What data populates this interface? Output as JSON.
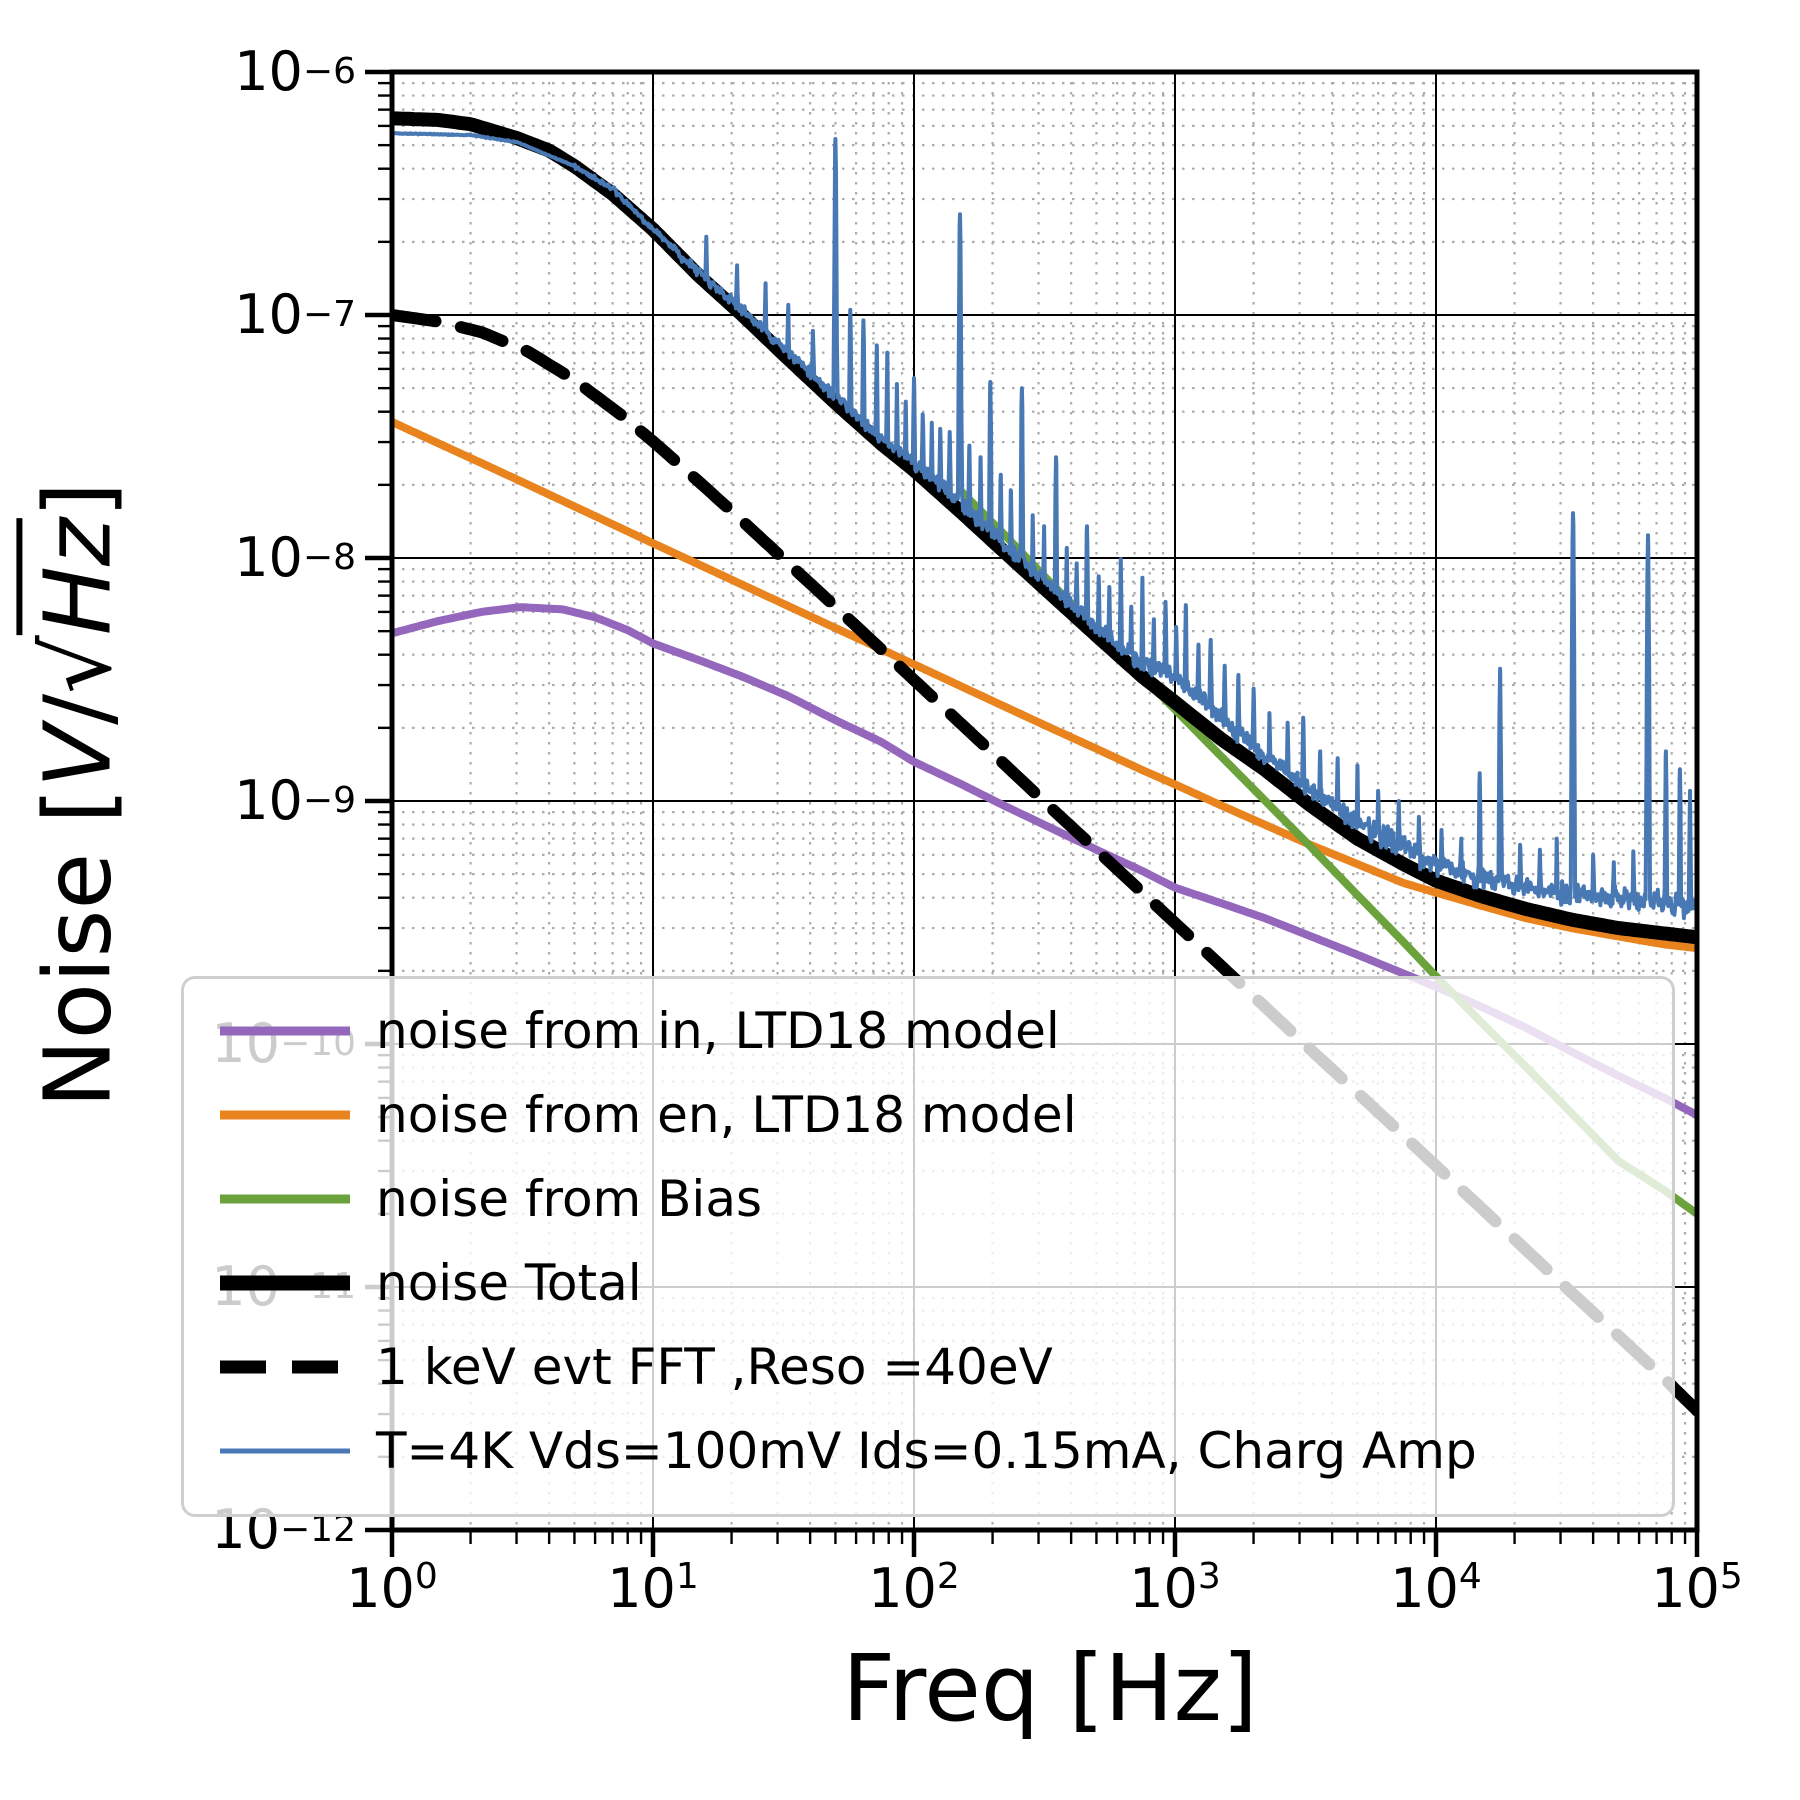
{
  "chart_data": {
    "type": "line",
    "title": "",
    "xlabel": "Freq [Hz]",
    "ylabel": "Noise [V/√Hz]",
    "ylabel_parts": {
      "prefix": "Noise [",
      "v": "V",
      "slash": "/",
      "radical": "√",
      "hz": "Hz",
      "suffix": "]"
    },
    "xscale": "log",
    "yscale": "log",
    "xlim": [
      1,
      100000
    ],
    "ylim": [
      1e-12,
      1e-06
    ],
    "x_tick_exponents": [
      0,
      1,
      2,
      3,
      4,
      5
    ],
    "y_tick_exponents": [
      -6,
      -7,
      -8,
      -9,
      -10,
      -11,
      -12
    ],
    "grid": {
      "major": true,
      "minor": true,
      "major_color": "#000000",
      "minor_color": "#ababab"
    },
    "legend": {
      "position": "lower-left",
      "background": "rgba(255,255,255,0.8)",
      "border_color": "#cfcfcf"
    },
    "series": [
      {
        "name": "noise from in, LTD18 model",
        "color": "#9467bd",
        "width": 8,
        "dash": "none",
        "anchors": [
          [
            1,
            4.9e-09
          ],
          [
            1.5,
            5.5e-09
          ],
          [
            2.2,
            6e-09
          ],
          [
            3.1,
            6.28e-09
          ],
          [
            4.5,
            6.15e-09
          ],
          [
            6,
            5.7e-09
          ],
          [
            8,
            5.05e-09
          ],
          [
            10,
            4.45e-09
          ],
          [
            15,
            3.8e-09
          ],
          [
            22,
            3.25e-09
          ],
          [
            33,
            2.7e-09
          ],
          [
            50,
            2.15e-09
          ],
          [
            75,
            1.75e-09
          ],
          [
            100,
            1.45e-09
          ],
          [
            150,
            1.18e-09
          ],
          [
            220,
            9.6e-10
          ],
          [
            330,
            7.8e-10
          ],
          [
            500,
            6.3e-10
          ],
          [
            750,
            5.15e-10
          ],
          [
            1000,
            4.4e-10
          ],
          [
            1500,
            3.8e-10
          ],
          [
            2200,
            3.3e-10
          ],
          [
            3300,
            2.78e-10
          ],
          [
            5000,
            2.33e-10
          ],
          [
            7500,
            1.95e-10
          ],
          [
            10000,
            1.72e-10
          ],
          [
            15000,
            1.42e-10
          ],
          [
            22000,
            1.17e-10
          ],
          [
            33000,
            9.3e-11
          ],
          [
            50000,
            7.4e-11
          ],
          [
            75000,
            6e-11
          ],
          [
            100000,
            5.1e-11
          ]
        ]
      },
      {
        "name": "noise from en, LTD18 model",
        "color": "#e8831e",
        "width": 8,
        "dash": "none",
        "anchors": [
          [
            1,
            3.63e-08
          ],
          [
            1.5,
            2.97e-08
          ],
          [
            2.2,
            2.46e-08
          ],
          [
            3.3,
            2.01e-08
          ],
          [
            5,
            1.63e-08
          ],
          [
            7.5,
            1.33e-08
          ],
          [
            10,
            1.15e-08
          ],
          [
            15,
            9.4e-09
          ],
          [
            22,
            7.76e-09
          ],
          [
            33,
            6.34e-09
          ],
          [
            50,
            5.15e-09
          ],
          [
            75,
            4.21e-09
          ],
          [
            100,
            3.65e-09
          ],
          [
            150,
            2.98e-09
          ],
          [
            220,
            2.46e-09
          ],
          [
            330,
            2.01e-09
          ],
          [
            500,
            1.64e-09
          ],
          [
            750,
            1.34e-09
          ],
          [
            1000,
            1.17e-09
          ],
          [
            1500,
            9.6e-10
          ],
          [
            2200,
            8e-10
          ],
          [
            3300,
            6.6e-10
          ],
          [
            5000,
            5.5e-10
          ],
          [
            7500,
            4.6e-10
          ],
          [
            10000,
            4.2e-10
          ],
          [
            15000,
            3.7e-10
          ],
          [
            22000,
            3.3e-10
          ],
          [
            33000,
            3e-10
          ],
          [
            50000,
            2.77e-10
          ],
          [
            75000,
            2.57e-10
          ],
          [
            100000,
            2.48e-10
          ]
        ]
      },
      {
        "name": "noise from Bias",
        "color": "#6ba23c",
        "width": 8,
        "dash": "none",
        "anchors": [
          [
            150,
            1.9e-08
          ],
          [
            220,
            1.26e-08
          ],
          [
            330,
            8e-09
          ],
          [
            500,
            5.1e-09
          ],
          [
            750,
            3.25e-09
          ],
          [
            1000,
            2.38e-09
          ],
          [
            1500,
            1.53e-09
          ],
          [
            2200,
            1.01e-09
          ],
          [
            3300,
            6.5e-10
          ],
          [
            5000,
            4.1e-10
          ],
          [
            7500,
            2.63e-10
          ],
          [
            10000,
            1.9e-10
          ],
          [
            15000,
            1.22e-10
          ],
          [
            22000,
            8.1e-11
          ],
          [
            33000,
            5.2e-11
          ],
          [
            50000,
            3.3e-11
          ],
          [
            75000,
            2.5e-11
          ],
          [
            100000,
            2e-11
          ]
        ]
      },
      {
        "name": "noise Total",
        "color": "#000000",
        "width": 14,
        "dash": "none",
        "anchors": [
          [
            1,
            6.45e-07
          ],
          [
            1.5,
            6.35e-07
          ],
          [
            2,
            6.1e-07
          ],
          [
            3,
            5.35e-07
          ],
          [
            4,
            4.75e-07
          ],
          [
            5,
            4.1e-07
          ],
          [
            7,
            3.15e-07
          ],
          [
            10,
            2.25e-07
          ],
          [
            15,
            1.45e-07
          ],
          [
            22,
            1e-07
          ],
          [
            33,
            6.6e-08
          ],
          [
            50,
            4.35e-08
          ],
          [
            75,
            2.95e-08
          ],
          [
            100,
            2.3e-08
          ],
          [
            150,
            1.56e-08
          ],
          [
            220,
            1.07e-08
          ],
          [
            330,
            7.2e-09
          ],
          [
            500,
            4.8e-09
          ],
          [
            750,
            3.25e-09
          ],
          [
            1000,
            2.55e-09
          ],
          [
            1500,
            1.8e-09
          ],
          [
            2200,
            1.35e-09
          ],
          [
            3300,
            9.6e-10
          ],
          [
            5000,
            7e-10
          ],
          [
            7500,
            5.5e-10
          ],
          [
            10000,
            4.7e-10
          ],
          [
            15000,
            4.05e-10
          ],
          [
            22000,
            3.6e-10
          ],
          [
            33000,
            3.25e-10
          ],
          [
            50000,
            3e-10
          ],
          [
            75000,
            2.85e-10
          ],
          [
            100000,
            2.75e-10
          ]
        ]
      },
      {
        "name": "1 keV evt FFT ,Reso =40eV",
        "color": "#000000",
        "width": 12,
        "dash": "44 26",
        "legend_dash": "46 26",
        "anchors": [
          [
            1,
            1e-07
          ],
          [
            1.5,
            9.4e-08
          ],
          [
            2.2,
            8.5e-08
          ],
          [
            3.3,
            7.1e-08
          ],
          [
            5,
            5.4e-08
          ],
          [
            7.5,
            3.9e-08
          ],
          [
            10,
            3.02e-08
          ],
          [
            15,
            2.06e-08
          ],
          [
            22,
            1.42e-08
          ],
          [
            33,
            9.5e-09
          ],
          [
            50,
            6.3e-09
          ],
          [
            75,
            4.2e-09
          ],
          [
            100,
            3.15e-09
          ],
          [
            150,
            2.1e-09
          ],
          [
            220,
            1.43e-09
          ],
          [
            330,
            9.5e-10
          ],
          [
            500,
            6.3e-10
          ],
          [
            750,
            4.2e-10
          ],
          [
            1000,
            3.15e-10
          ],
          [
            1500,
            2.1e-10
          ],
          [
            2200,
            1.43e-10
          ],
          [
            3300,
            9.5e-11
          ],
          [
            5000,
            6.3e-11
          ],
          [
            7500,
            4.2e-11
          ],
          [
            10000,
            3.15e-11
          ],
          [
            15000,
            2.1e-11
          ],
          [
            22000,
            1.43e-11
          ],
          [
            33000,
            9.5e-12
          ],
          [
            50000,
            6.3e-12
          ],
          [
            75000,
            4.2e-12
          ],
          [
            100000,
            3.1e-12
          ]
        ]
      },
      {
        "name": "T=4K Vds=100mV Ids=0.15mA, Charg Amp",
        "color": "#4879b4",
        "width": 4,
        "dash": "none",
        "n": 1500,
        "seed": 42,
        "jitter": [
          [
            5,
            0.006
          ],
          [
            12,
            0.03
          ],
          [
            100,
            0.06
          ],
          [
            700,
            0.085
          ],
          [
            5000,
            0.105
          ],
          [
            1000000,
            0.13
          ]
        ],
        "anchors": [
          [
            1,
            5.6e-07
          ],
          [
            2,
            5.5e-07
          ],
          [
            3,
            5.15e-07
          ],
          [
            5,
            4.1e-07
          ],
          [
            7,
            3.3e-07
          ],
          [
            10,
            2.25e-07
          ],
          [
            15,
            1.5e-07
          ],
          [
            22,
            1.05e-07
          ],
          [
            33,
            7e-08
          ],
          [
            50,
            4.6e-08
          ],
          [
            75,
            3.1e-08
          ],
          [
            100,
            2.5e-08
          ],
          [
            150,
            1.7e-08
          ],
          [
            220,
            1.15e-08
          ],
          [
            330,
            7.8e-09
          ],
          [
            500,
            5.2e-09
          ],
          [
            750,
            3.7e-09
          ],
          [
            1000,
            3.3e-09
          ],
          [
            1500,
            2.2e-09
          ],
          [
            2200,
            1.55e-09
          ],
          [
            3300,
            1.12e-09
          ],
          [
            5000,
            8.2e-10
          ],
          [
            7500,
            6.5e-10
          ],
          [
            10000,
            5.5e-10
          ],
          [
            15000,
            4.8e-10
          ],
          [
            22000,
            4.4e-10
          ],
          [
            33000,
            4.15e-10
          ],
          [
            50000,
            4e-10
          ],
          [
            75000,
            3.85e-10
          ],
          [
            100000,
            3.6e-10
          ]
        ],
        "spikes": [
          [
            16,
            2.1e-07
          ],
          [
            21,
            1.6e-07
          ],
          [
            27,
            1.35e-07
          ],
          [
            33,
            1.1e-07
          ],
          [
            41,
            8.6e-08
          ],
          [
            50,
            5.3e-07
          ],
          [
            57,
            1.05e-07
          ],
          [
            64,
            9.5e-08
          ],
          [
            72,
            7.5e-08
          ],
          [
            79,
            7e-08
          ],
          [
            86,
            5.2e-08
          ],
          [
            93,
            4.4e-08
          ],
          [
            100,
            5.5e-08
          ],
          [
            108,
            3.9e-08
          ],
          [
            117,
            3.6e-08
          ],
          [
            126,
            3.4e-08
          ],
          [
            137,
            3.3e-08
          ],
          [
            150,
            2.6e-07
          ],
          [
            163,
            2.9e-08
          ],
          [
            180,
            2.6e-08
          ],
          [
            196,
            5.3e-08
          ],
          [
            215,
            2.2e-08
          ],
          [
            235,
            1.9e-08
          ],
          [
            259,
            5e-08
          ],
          [
            285,
            1.5e-08
          ],
          [
            315,
            1.35e-08
          ],
          [
            350,
            2.6e-08
          ],
          [
            385,
            1.1e-08
          ],
          [
            420,
            9.5e-09
          ],
          [
            460,
            1.35e-08
          ],
          [
            510,
            8.4e-09
          ],
          [
            560,
            7.6e-09
          ],
          [
            620,
            9.9e-09
          ],
          [
            680,
            6.3e-09
          ],
          [
            750,
            8.3e-09
          ],
          [
            830,
            5.6e-09
          ],
          [
            920,
            6.6e-09
          ],
          [
            1010,
            5.2e-09
          ],
          [
            1100,
            6.4e-09
          ],
          [
            1230,
            4.4e-09
          ],
          [
            1370,
            4.6e-09
          ],
          [
            1550,
            3.6e-09
          ],
          [
            1750,
            3.3e-09
          ],
          [
            2000,
            2.9e-09
          ],
          [
            2300,
            2.3e-09
          ],
          [
            2700,
            2.1e-09
          ],
          [
            3100,
            2.2e-09
          ],
          [
            3600,
            1.6e-09
          ],
          [
            4200,
            1.5e-09
          ],
          [
            5000,
            1.4e-09
          ],
          [
            6000,
            1.1e-09
          ],
          [
            7200,
            1e-09
          ],
          [
            8600,
            8.6e-10
          ],
          [
            10500,
            7.6e-10
          ],
          [
            12500,
            7e-10
          ],
          [
            14700,
            1.3e-09
          ],
          [
            17600,
            3.5e-09
          ],
          [
            21000,
            6.6e-10
          ],
          [
            25000,
            6.3e-10
          ],
          [
            29000,
            7e-10
          ],
          [
            33500,
            1.53e-08
          ],
          [
            40000,
            6e-10
          ],
          [
            48000,
            5.6e-10
          ],
          [
            57000,
            6.2e-10
          ],
          [
            64900,
            1.24e-08
          ],
          [
            76000,
            1.6e-09
          ],
          [
            86000,
            1.35e-09
          ],
          [
            94000,
            1.1e-09
          ]
        ]
      }
    ]
  }
}
